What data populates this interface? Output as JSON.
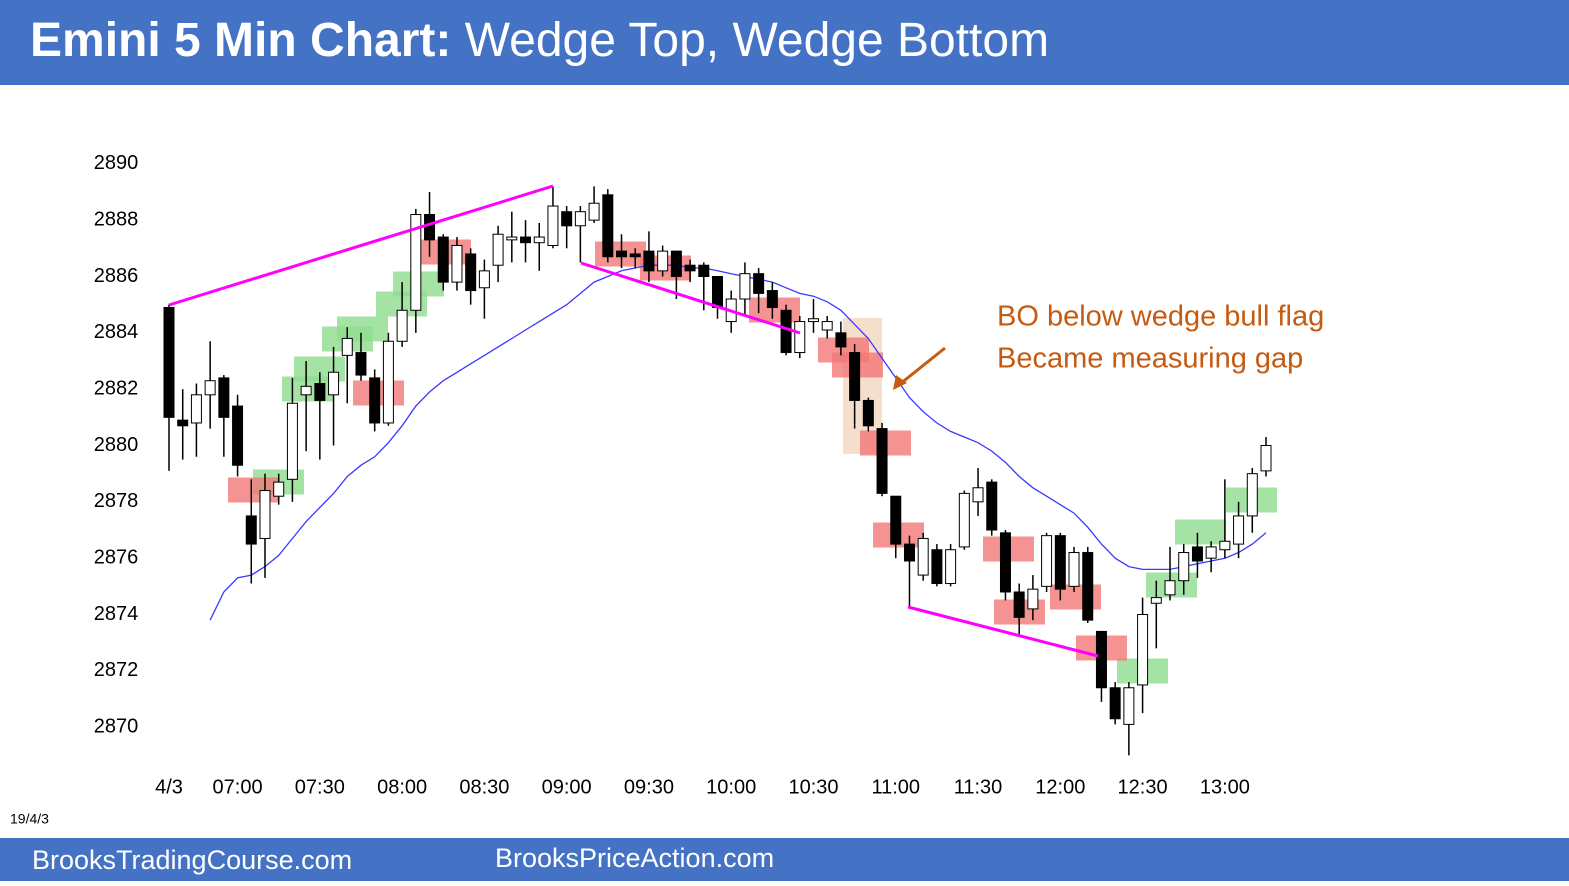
{
  "header": {
    "title_bold": "Emini 5 Min Chart:",
    "title_rest": "Wedge Top, Wedge Bottom"
  },
  "chart_data": {
    "type": "candlestick",
    "categories": [
      "4/3",
      null,
      null,
      null,
      null,
      "07:00",
      null,
      null,
      null,
      null,
      null,
      "07:30",
      null,
      null,
      null,
      null,
      null,
      "08:00",
      null,
      null,
      null,
      null,
      null,
      "08:30",
      null,
      null,
      null,
      null,
      null,
      "09:00",
      null,
      null,
      null,
      null,
      null,
      "09:30",
      null,
      null,
      null,
      null,
      null,
      "10:00",
      null,
      null,
      null,
      null,
      null,
      "10:30",
      null,
      null,
      null,
      null,
      null,
      "11:00",
      null,
      null,
      null,
      null,
      null,
      "11:30",
      null,
      null,
      null,
      null,
      null,
      "12:00",
      null,
      null,
      null,
      null,
      null,
      "12:30",
      null,
      null,
      null,
      null,
      null,
      "13:00",
      null,
      null,
      null
    ],
    "open": [
      2884.9,
      2880.9,
      2880.8,
      2881.8,
      2882.4,
      2881.4,
      2877.5,
      2876.7,
      2878.2,
      2878.8,
      2881.8,
      2882.2,
      2881.8,
      2883.2,
      2883.3,
      2882.4,
      2880.8,
      2883.7,
      2884.8,
      2888.2,
      2887.4,
      2885.8,
      2886.8,
      2885.6,
      2886.4,
      2887.3,
      2887.4,
      2887.2,
      2887.1,
      2888.3,
      2887.8,
      2888,
      2888.9,
      2886.9,
      2886.8,
      2886.9,
      2886.2,
      2886.9,
      2886.4,
      2886.4,
      2886,
      2884.4,
      2885.2,
      2886.1,
      2885.5,
      2884.8,
      2883.3,
      2884.4,
      2884.1,
      2884,
      2883.3,
      2881.6,
      2880.6,
      2878.2,
      2876.5,
      2875.4,
      2876.3,
      2875.1,
      2876.4,
      2878,
      2878.7,
      2876.9,
      2874.8,
      2874.2,
      2875,
      2876.8,
      2875,
      2876.2,
      2873.4,
      2871.4,
      2870.1,
      2871.5,
      2874.4,
      2874.7,
      2875.2,
      2876.4,
      2876,
      2876.3,
      2876.5,
      2877.5,
      2879.1
    ],
    "high": [
      2885,
      2882,
      2882.2,
      2883.7,
      2882.5,
      2881.8,
      2878.8,
      2879,
      2879,
      2882.4,
      2883,
      2882.6,
      2883.5,
      2884.2,
      2884,
      2882.7,
      2884,
      2885.8,
      2888.4,
      2889,
      2887.5,
      2887.4,
      2887,
      2886.6,
      2887.8,
      2888.3,
      2888,
      2887.9,
      2889.2,
      2888.5,
      2888.5,
      2889.2,
      2889.1,
      2887.5,
      2887,
      2887.6,
      2887.1,
      2886.9,
      2886.6,
      2886.5,
      2886,
      2885.5,
      2886.5,
      2886.3,
      2885.8,
      2885,
      2884.6,
      2885.2,
      2884.6,
      2884.4,
      2883.6,
      2881.7,
      2880.8,
      2878.2,
      2876.8,
      2876.9,
      2876.5,
      2876.5,
      2878.4,
      2879.2,
      2878.8,
      2877,
      2875.1,
      2875.4,
      2876.9,
      2876.9,
      2876.4,
      2876.4,
      2873.4,
      2871.6,
      2871.6,
      2874.6,
      2875.2,
      2876.4,
      2876.5,
      2876.9,
      2876.6,
      2878.8,
      2878,
      2879.2,
      2880.3
    ],
    "low": [
      2879.1,
      2879.5,
      2879.6,
      2880.6,
      2879.6,
      2878.9,
      2875.1,
      2875.3,
      2877.9,
      2878,
      2879.8,
      2879.5,
      2880,
      2881.5,
      2882.3,
      2880.5,
      2880.7,
      2883.5,
      2884,
      2886.7,
      2885.5,
      2885.5,
      2885,
      2884.5,
      2885.8,
      2886.5,
      2886.5,
      2886.2,
      2887,
      2887,
      2886.5,
      2887.9,
      2886.5,
      2886.3,
      2886.3,
      2885.8,
      2886,
      2885.2,
      2885.8,
      2884.8,
      2884.5,
      2884,
      2884.6,
      2884.7,
      2884.5,
      2883.2,
      2883.1,
      2884,
      2883.8,
      2883.2,
      2880.6,
      2880.5,
      2878.2,
      2876,
      2874.3,
      2875.2,
      2875,
      2875,
      2876.3,
      2877.5,
      2876.8,
      2874.5,
      2873.3,
      2873.8,
      2874.8,
      2874.5,
      2874.8,
      2873.7,
      2870.9,
      2870.1,
      2869,
      2870.5,
      2872.8,
      2874.5,
      2874.7,
      2875.3,
      2875.5,
      2876,
      2876,
      2876.9,
      2878.9
    ],
    "close": [
      2881,
      2880.7,
      2881.8,
      2882.3,
      2881,
      2879.3,
      2876.5,
      2878.4,
      2878.7,
      2881.5,
      2882.1,
      2881.6,
      2882.6,
      2883.8,
      2882.5,
      2880.8,
      2883.7,
      2884.8,
      2888.2,
      2887.3,
      2885.8,
      2887.1,
      2885.5,
      2886.2,
      2887.5,
      2887.4,
      2887.2,
      2887.4,
      2888.5,
      2887.8,
      2888.3,
      2888.6,
      2886.7,
      2886.7,
      2886.7,
      2886.2,
      2886.9,
      2886,
      2886.2,
      2886,
      2884.9,
      2885.2,
      2886.1,
      2885.4,
      2884.9,
      2883.3,
      2884.4,
      2884.5,
      2884.4,
      2883.5,
      2881.6,
      2880.7,
      2878.3,
      2876.5,
      2875.9,
      2876.7,
      2875.1,
      2876.3,
      2878.3,
      2878.5,
      2877,
      2874.8,
      2873.9,
      2874.9,
      2876.8,
      2874.9,
      2876.2,
      2873.8,
      2871.4,
      2870.3,
      2871.4,
      2874,
      2874.6,
      2875.2,
      2876.2,
      2875.9,
      2876.4,
      2876.6,
      2877.5,
      2879,
      2880
    ],
    "up_color": "#ffffff",
    "down_color": "#000000",
    "moving_average": {
      "color": "#3a3aff",
      "values": [
        null,
        null,
        null,
        2873.8,
        2874.8,
        2875.3,
        2875.4,
        2875.7,
        2876.1,
        2876.7,
        2877.3,
        2877.8,
        2878.3,
        2878.9,
        2879.3,
        2879.6,
        2880.1,
        2880.7,
        2881.4,
        2881.9,
        2882.3,
        2882.6,
        2882.9,
        2883.2,
        2883.5,
        2883.8,
        2884.1,
        2884.4,
        2884.7,
        2885,
        2885.4,
        2885.8,
        2886,
        2886.2,
        2886.3,
        2886.4,
        2886.4,
        2886.4,
        2886.3,
        2886.3,
        2886.2,
        2886.1,
        2886,
        2885.9,
        2885.8,
        2885.6,
        2885.4,
        2885.3,
        2885.1,
        2884.8,
        2884.3,
        2883.8,
        2883.1,
        2882.4,
        2881.7,
        2881.2,
        2880.8,
        2880.5,
        2880.3,
        2880.1,
        2879.8,
        2879.4,
        2878.9,
        2878.5,
        2878.2,
        2877.9,
        2877.6,
        2877.1,
        2876.5,
        2876,
        2875.7,
        2875.6,
        2875.6,
        2875.6,
        2875.7,
        2875.8,
        2875.9,
        2876,
        2876.2,
        2876.5,
        2876.9
      ]
    },
    "ylim": [
      2868.8,
      2891.2
    ],
    "yticks": [
      2870,
      2872,
      2874,
      2876,
      2878,
      2880,
      2882,
      2884,
      2886,
      2888,
      2890
    ],
    "annotations": [
      "BO below wedge bull flag",
      "Became measuring gap"
    ],
    "date_label": "19/4/3"
  },
  "footer": {
    "left": "BrooksTradingCourse.com",
    "right": "BrooksPriceAction.com"
  }
}
